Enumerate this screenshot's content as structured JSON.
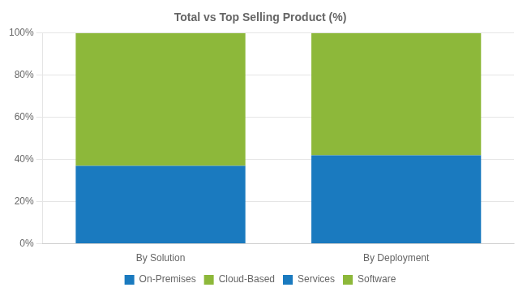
{
  "chart_data": {
    "type": "bar",
    "title": "Total vs Top Selling Product (%)",
    "categories": [
      "By Solution",
      "By Deployment"
    ],
    "series": [
      {
        "name": "On-Premises",
        "color": "#1a7abf",
        "values": [
          null,
          42
        ]
      },
      {
        "name": "Cloud-Based",
        "color": "#8db83a",
        "values": [
          null,
          58
        ]
      },
      {
        "name": "Services",
        "color": "#1a7abf",
        "values": [
          37,
          null
        ]
      },
      {
        "name": "Software",
        "color": "#8db83a",
        "values": [
          63,
          null
        ]
      }
    ],
    "stacked": true,
    "ylim": [
      0,
      100
    ],
    "yticks": [
      {
        "value": 0,
        "label": "0%"
      },
      {
        "value": 20,
        "label": "20%"
      },
      {
        "value": 40,
        "label": "40%"
      },
      {
        "value": 60,
        "label": "60%"
      },
      {
        "value": 80,
        "label": "80%"
      },
      {
        "value": 100,
        "label": "100%"
      }
    ],
    "grid": true,
    "legend": "bottom"
  }
}
